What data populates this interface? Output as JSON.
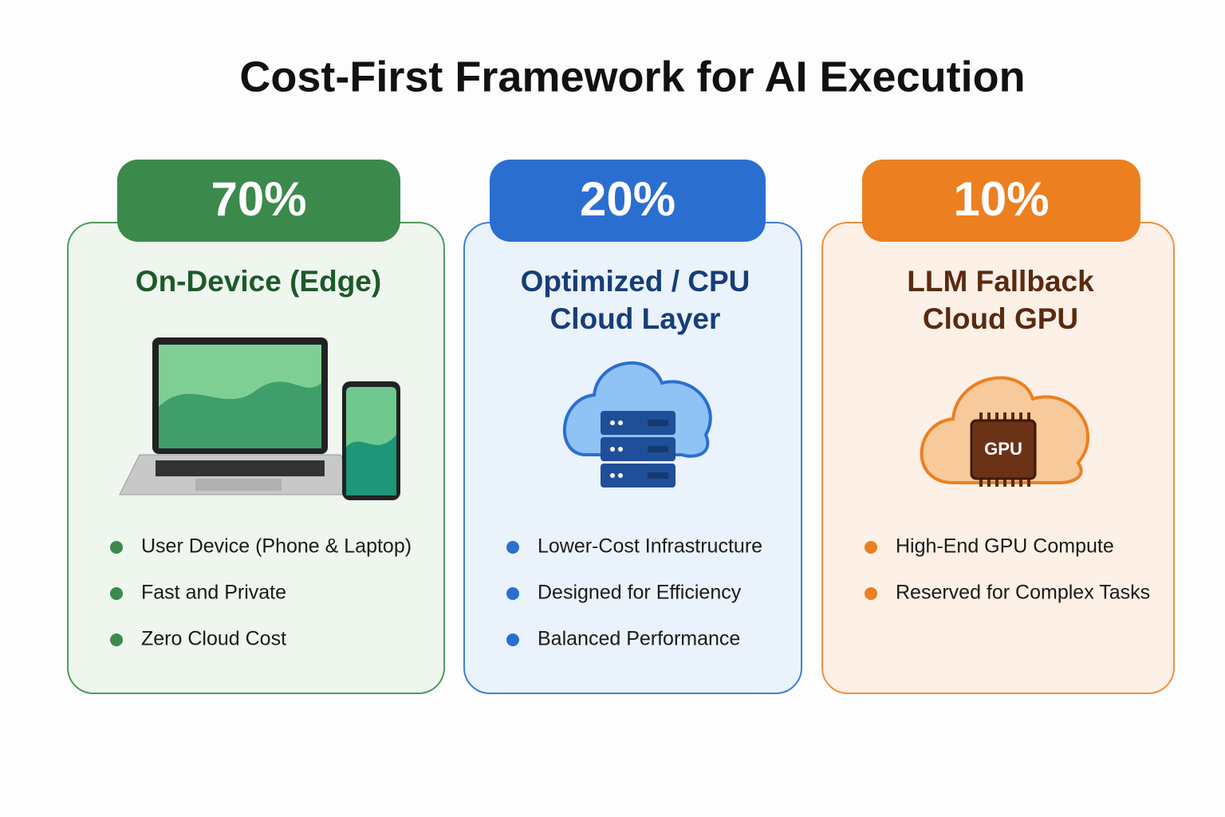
{
  "title": "Cost-First Framework for AI Execution",
  "cards": [
    {
      "share": "70%",
      "heading": [
        "On-Device (Edge)"
      ],
      "bullets": [
        "User Device (Phone & Laptop)",
        "Fast and Private",
        "Zero Cloud Cost"
      ]
    },
    {
      "share": "20%",
      "heading": [
        "Optimized / CPU",
        "Cloud Layer"
      ],
      "bullets": [
        "Lower-Cost Infrastructure",
        "Designed for Efficiency",
        "Balanced Performance"
      ]
    },
    {
      "share": "10%",
      "heading": [
        "LLM Fallback",
        "Cloud GPU"
      ],
      "icon_label": "GPU",
      "bullets": [
        "High-End GPU Compute",
        "Reserved for Complex Tasks"
      ]
    }
  ]
}
